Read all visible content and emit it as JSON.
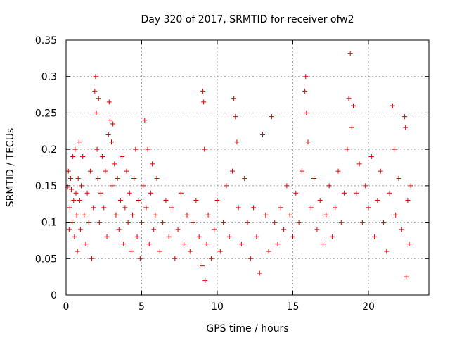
{
  "chart_data": {
    "type": "scatter",
    "title": "Day 320 of 2017, SRMTID for receiver ofw2",
    "xlabel": "GPS time / hours",
    "ylabel": "SRMTID / TECUs",
    "xlim": [
      0,
      24
    ],
    "ylim": [
      0,
      0.35
    ],
    "xticks": [
      0,
      5,
      10,
      15,
      20
    ],
    "yticks": [
      0,
      0.05,
      0.1,
      0.15,
      0.2,
      0.25,
      0.3,
      0.35
    ],
    "xtick_labels": [
      "0",
      "5",
      "10",
      "15",
      "20"
    ],
    "ytick_labels": [
      "0",
      "0.05",
      "0.1",
      "0.15",
      "0.2",
      "0.25",
      "0.3",
      "0.35"
    ],
    "grid": true,
    "marker": "+",
    "color": "#e00000",
    "series": [
      {
        "name": "SRMTID",
        "points": [
          [
            0.1,
            0.148
          ],
          [
            0.15,
            0.17
          ],
          [
            0.2,
            0.09
          ],
          [
            0.25,
            0.12
          ],
          [
            0.3,
            0.16
          ],
          [
            0.35,
            0.145
          ],
          [
            0.4,
            0.1
          ],
          [
            0.45,
            0.19
          ],
          [
            0.5,
            0.13
          ],
          [
            0.55,
            0.08
          ],
          [
            0.6,
            0.2
          ],
          [
            0.65,
            0.14
          ],
          [
            0.7,
            0.11
          ],
          [
            0.75,
            0.06
          ],
          [
            0.8,
            0.16
          ],
          [
            0.85,
            0.21
          ],
          [
            0.9,
            0.13
          ],
          [
            0.95,
            0.09
          ],
          [
            1.0,
            0.15
          ],
          [
            1.1,
            0.19
          ],
          [
            1.2,
            0.11
          ],
          [
            1.3,
            0.07
          ],
          [
            1.4,
            0.14
          ],
          [
            1.5,
            0.1
          ],
          [
            1.6,
            0.17
          ],
          [
            1.7,
            0.05
          ],
          [
            1.8,
            0.12
          ],
          [
            1.9,
            0.28
          ],
          [
            1.95,
            0.3
          ],
          [
            2.0,
            0.25
          ],
          [
            2.05,
            0.2
          ],
          [
            2.1,
            0.16
          ],
          [
            2.15,
            0.27
          ],
          [
            2.2,
            0.1
          ],
          [
            2.3,
            0.14
          ],
          [
            2.4,
            0.19
          ],
          [
            2.5,
            0.12
          ],
          [
            2.6,
            0.17
          ],
          [
            2.7,
            0.08
          ],
          [
            2.8,
            0.22
          ],
          [
            2.85,
            0.265
          ],
          [
            2.9,
            0.24
          ],
          [
            3.0,
            0.21
          ],
          [
            3.05,
            0.15
          ],
          [
            3.1,
            0.235
          ],
          [
            3.2,
            0.18
          ],
          [
            3.3,
            0.11
          ],
          [
            3.4,
            0.16
          ],
          [
            3.5,
            0.09
          ],
          [
            3.6,
            0.13
          ],
          [
            3.7,
            0.19
          ],
          [
            3.8,
            0.07
          ],
          [
            3.9,
            0.12
          ],
          [
            4.0,
            0.17
          ],
          [
            4.1,
            0.1
          ],
          [
            4.2,
            0.14
          ],
          [
            4.3,
            0.06
          ],
          [
            4.4,
            0.11
          ],
          [
            4.5,
            0.16
          ],
          [
            4.6,
            0.2
          ],
          [
            4.7,
            0.08
          ],
          [
            4.8,
            0.13
          ],
          [
            4.9,
            0.05
          ],
          [
            5.0,
            0.1
          ],
          [
            5.1,
            0.15
          ],
          [
            5.2,
            0.24
          ],
          [
            5.3,
            0.12
          ],
          [
            5.4,
            0.2
          ],
          [
            5.5,
            0.07
          ],
          [
            5.6,
            0.14
          ],
          [
            5.7,
            0.18
          ],
          [
            5.8,
            0.09
          ],
          [
            5.9,
            0.11
          ],
          [
            6.0,
            0.16
          ],
          [
            6.2,
            0.06
          ],
          [
            6.4,
            0.1
          ],
          [
            6.6,
            0.13
          ],
          [
            6.8,
            0.08
          ],
          [
            7.0,
            0.12
          ],
          [
            7.2,
            0.05
          ],
          [
            7.4,
            0.09
          ],
          [
            7.6,
            0.14
          ],
          [
            7.8,
            0.07
          ],
          [
            8.0,
            0.11
          ],
          [
            8.2,
            0.06
          ],
          [
            8.4,
            0.1
          ],
          [
            8.6,
            0.13
          ],
          [
            8.8,
            0.08
          ],
          [
            9.0,
            0.04
          ],
          [
            9.05,
            0.28
          ],
          [
            9.1,
            0.265
          ],
          [
            9.15,
            0.2
          ],
          [
            9.2,
            0.02
          ],
          [
            9.3,
            0.07
          ],
          [
            9.4,
            0.11
          ],
          [
            9.6,
            0.05
          ],
          [
            9.8,
            0.09
          ],
          [
            10.0,
            0.13
          ],
          [
            10.2,
            0.06
          ],
          [
            10.4,
            0.1
          ],
          [
            10.6,
            0.15
          ],
          [
            10.8,
            0.08
          ],
          [
            11.0,
            0.17
          ],
          [
            11.1,
            0.27
          ],
          [
            11.2,
            0.245
          ],
          [
            11.3,
            0.21
          ],
          [
            11.4,
            0.12
          ],
          [
            11.6,
            0.07
          ],
          [
            11.8,
            0.16
          ],
          [
            12.0,
            0.1
          ],
          [
            12.2,
            0.05
          ],
          [
            12.4,
            0.12
          ],
          [
            12.6,
            0.08
          ],
          [
            12.8,
            0.03
          ],
          [
            13.0,
            0.22
          ],
          [
            13.2,
            0.11
          ],
          [
            13.4,
            0.06
          ],
          [
            13.6,
            0.245
          ],
          [
            13.8,
            0.1
          ],
          [
            14.0,
            0.07
          ],
          [
            14.2,
            0.12
          ],
          [
            14.4,
            0.09
          ],
          [
            14.6,
            0.15
          ],
          [
            14.8,
            0.11
          ],
          [
            15.0,
            0.08
          ],
          [
            15.2,
            0.14
          ],
          [
            15.4,
            0.1
          ],
          [
            15.6,
            0.17
          ],
          [
            15.8,
            0.28
          ],
          [
            15.85,
            0.3
          ],
          [
            15.9,
            0.25
          ],
          [
            16.0,
            0.21
          ],
          [
            16.2,
            0.12
          ],
          [
            16.4,
            0.16
          ],
          [
            16.6,
            0.09
          ],
          [
            16.8,
            0.13
          ],
          [
            17.0,
            0.07
          ],
          [
            17.2,
            0.11
          ],
          [
            17.4,
            0.15
          ],
          [
            17.6,
            0.08
          ],
          [
            17.8,
            0.12
          ],
          [
            18.0,
            0.17
          ],
          [
            18.2,
            0.1
          ],
          [
            18.4,
            0.14
          ],
          [
            18.6,
            0.2
          ],
          [
            18.7,
            0.27
          ],
          [
            18.8,
            0.332
          ],
          [
            18.9,
            0.23
          ],
          [
            19.0,
            0.26
          ],
          [
            19.2,
            0.14
          ],
          [
            19.4,
            0.18
          ],
          [
            19.6,
            0.1
          ],
          [
            19.8,
            0.15
          ],
          [
            20.0,
            0.12
          ],
          [
            20.2,
            0.19
          ],
          [
            20.4,
            0.08
          ],
          [
            20.6,
            0.13
          ],
          [
            20.8,
            0.17
          ],
          [
            21.0,
            0.1
          ],
          [
            21.2,
            0.06
          ],
          [
            21.4,
            0.14
          ],
          [
            21.6,
            0.26
          ],
          [
            21.7,
            0.2
          ],
          [
            21.8,
            0.11
          ],
          [
            22.0,
            0.16
          ],
          [
            22.2,
            0.09
          ],
          [
            22.4,
            0.245
          ],
          [
            22.45,
            0.23
          ],
          [
            22.5,
            0.025
          ],
          [
            22.6,
            0.13
          ],
          [
            22.7,
            0.07
          ],
          [
            22.8,
            0.15
          ]
        ]
      }
    ]
  }
}
